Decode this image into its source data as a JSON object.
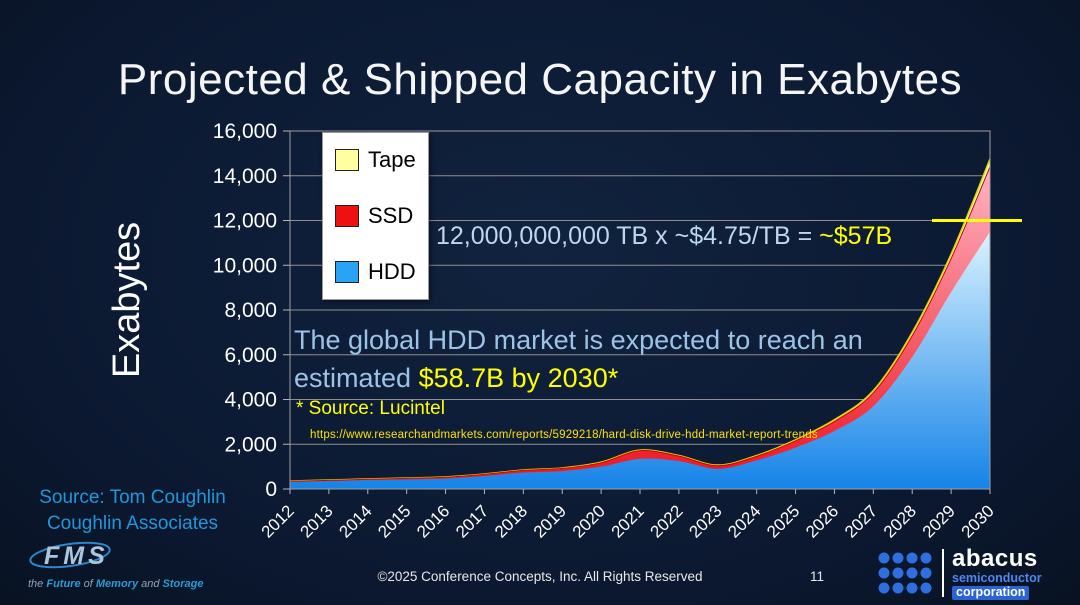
{
  "colors": {
    "background": "#0d1b31",
    "accent_yellow": "#ffff00",
    "light_blue_text": "#9cc3e5",
    "source_blue": "#2196d9"
  },
  "slide": {
    "title": "Projected & Shipped Capacity in Exabytes",
    "footer_copyright": "©2025 Conference Concepts, Inc. All Rights Reserved",
    "page_number": "11",
    "source_line1": "Source: Tom Coughlin",
    "source_line2": "Coughlin Associates"
  },
  "annotations": {
    "calc_prefix": "12,000,000,000 TB x ~$4.75/TB = ",
    "calc_highlight": "~$57B",
    "market_line1": "The global HDD market is expected to reach an",
    "market_line2_prefix": "estimated ",
    "market_line2_highlight": "$58.7B by 2030*",
    "source_note": "* Source: Lucintel",
    "source_url": "https://www.researchandmarkets.com/reports/5929218/hard-disk-drive-hdd-market-report-trends"
  },
  "logos": {
    "fms": {
      "mark": "FMS",
      "tagline_parts": [
        {
          "text": "the ",
          "emph": false
        },
        {
          "text": "Future",
          "emph": true
        },
        {
          "text": " of ",
          "emph": false
        },
        {
          "text": "Memory",
          "emph": true
        },
        {
          "text": " and ",
          "emph": false
        },
        {
          "text": "Storage",
          "emph": true
        }
      ]
    },
    "abacus": {
      "name": "abacus",
      "sub1": "semiconductor",
      "sub2": "corporation"
    }
  },
  "chart_data": {
    "type": "area",
    "stacked": true,
    "title": "Projected & Shipped Capacity in Exabytes",
    "xlabel": "",
    "ylabel": "Exabytes",
    "ylim": [
      0,
      16000
    ],
    "yticks": [
      0,
      2000,
      4000,
      6000,
      8000,
      10000,
      12000,
      14000,
      16000
    ],
    "categories": [
      "2012",
      "2013",
      "2014",
      "2015",
      "2016",
      "2017",
      "2018",
      "2019",
      "2020",
      "2021",
      "2022",
      "2023",
      "2024",
      "2025",
      "2026",
      "2027",
      "2028",
      "2029",
      "2030"
    ],
    "series": [
      {
        "name": "HDD",
        "values": [
          325,
          360,
          400,
          430,
          470,
          580,
          730,
          800,
          1000,
          1350,
          1250,
          900,
          1280,
          1850,
          2600,
          3700,
          5900,
          8800,
          11500
        ],
        "fill_top": "#d9f3fe",
        "fill_bottom": "#1583e8",
        "legend_color": "#29a3f3",
        "stroke": "#2aa0f0"
      },
      {
        "name": "SSD",
        "values": [
          20,
          25,
          35,
          45,
          55,
          75,
          100,
          120,
          170,
          360,
          220,
          140,
          180,
          300,
          420,
          600,
          950,
          1500,
          2900
        ],
        "fill_top": "#ffb6c4",
        "fill_bottom": "#ee0f1d",
        "legend_color": "#ee1111",
        "stroke": "#cc0000"
      },
      {
        "name": "Tape",
        "values": [
          15,
          15,
          15,
          15,
          15,
          15,
          20,
          20,
          30,
          30,
          30,
          30,
          40,
          50,
          80,
          100,
          150,
          200,
          350
        ],
        "fill_top": "#ffffc2",
        "fill_bottom": "#ffff9e",
        "legend_color": "#ffffa0",
        "stroke": "#d9d900"
      }
    ],
    "legend": [
      {
        "label": "Tape",
        "color": "#ffffa0"
      },
      {
        "label": "SSD",
        "color": "#ee1111"
      },
      {
        "label": "HDD",
        "color": "#29a3f3"
      }
    ],
    "legend_position": "upper-left",
    "grid": "horizontal",
    "reference_line": {
      "y": 12000,
      "color": "#ffff00"
    }
  }
}
